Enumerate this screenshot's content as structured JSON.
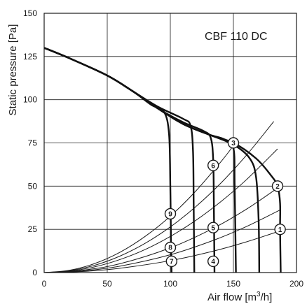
{
  "chart_data": {
    "type": "line",
    "title": "",
    "annotation": "CBF 110 DC",
    "xlabel": "Air flow [m",
    "xlabel_sup": "3",
    "xlabel_tail": "/h]",
    "ylabel": "Static pressure [Pa]",
    "xlim": [
      0,
      200
    ],
    "ylim": [
      0,
      150
    ],
    "xticks": [
      0,
      50,
      100,
      150,
      200
    ],
    "yticks": [
      0,
      25,
      50,
      75,
      100,
      125,
      150
    ],
    "xtick_labels": [
      "0",
      "50",
      "100",
      "150",
      "200"
    ],
    "ytick_labels": [
      "0",
      "25",
      "50",
      "75",
      "100",
      "125",
      "150"
    ],
    "grid": true,
    "fan_curves": [
      {
        "points": [
          [
            0,
            130
          ],
          [
            20,
            124
          ],
          [
            50,
            114
          ],
          [
            70,
            105
          ],
          [
            85,
            97
          ],
          [
            95,
            93
          ],
          [
            99,
            80
          ],
          [
            100,
            50
          ],
          [
            100.5,
            20
          ],
          [
            101,
            0
          ]
        ]
      },
      {
        "points": [
          [
            0,
            130
          ],
          [
            20,
            124
          ],
          [
            50,
            114
          ],
          [
            70,
            105
          ],
          [
            90,
            96
          ],
          [
            110,
            89
          ],
          [
            116,
            85
          ],
          [
            118,
            70
          ],
          [
            118.5,
            40
          ],
          [
            119,
            0
          ]
        ]
      },
      {
        "points": [
          [
            0,
            130
          ],
          [
            20,
            124
          ],
          [
            50,
            114
          ],
          [
            70,
            105
          ],
          [
            90,
            95
          ],
          [
            110,
            87
          ],
          [
            126,
            82
          ],
          [
            132,
            78
          ],
          [
            134,
            65
          ],
          [
            134.5,
            40
          ],
          [
            135,
            0
          ]
        ]
      },
      {
        "points": [
          [
            0,
            130
          ],
          [
            20,
            124
          ],
          [
            50,
            114
          ],
          [
            70,
            105
          ],
          [
            90,
            95
          ],
          [
            110,
            86
          ],
          [
            130,
            80
          ],
          [
            143,
            77
          ],
          [
            150,
            72
          ],
          [
            151,
            50
          ],
          [
            152,
            0
          ]
        ]
      },
      {
        "points": [
          [
            0,
            130
          ],
          [
            20,
            124
          ],
          [
            50,
            114
          ],
          [
            70,
            105
          ],
          [
            90,
            95
          ],
          [
            110,
            86
          ],
          [
            130,
            80
          ],
          [
            150,
            74
          ],
          [
            163,
            66
          ],
          [
            168,
            55
          ],
          [
            170,
            30
          ],
          [
            170.5,
            0
          ]
        ]
      },
      {
        "points": [
          [
            0,
            130
          ],
          [
            20,
            124
          ],
          [
            50,
            114
          ],
          [
            70,
            105
          ],
          [
            90,
            95
          ],
          [
            110,
            86
          ],
          [
            130,
            80
          ],
          [
            150,
            75
          ],
          [
            168,
            66
          ],
          [
            180,
            56
          ],
          [
            185,
            50
          ],
          [
            187,
            40
          ],
          [
            187,
            25
          ],
          [
            187.5,
            0
          ]
        ]
      }
    ],
    "system_curves": [
      {
        "points": [
          [
            0,
            0
          ],
          [
            20,
            1.3
          ],
          [
            40,
            5.2
          ],
          [
            60,
            11.7
          ],
          [
            80,
            20.9
          ],
          [
            100,
            32.6
          ],
          [
            120,
            47
          ],
          [
            140,
            64
          ],
          [
            150,
            73.4
          ]
        ]
      },
      {
        "points": [
          [
            0,
            0
          ],
          [
            20,
            1.05
          ],
          [
            40,
            4.2
          ],
          [
            60,
            9.5
          ],
          [
            80,
            16.9
          ],
          [
            100,
            26.4
          ],
          [
            120,
            38
          ],
          [
            140,
            51.7
          ],
          [
            160,
            67.6
          ],
          [
            182,
            87.4
          ]
        ]
      },
      {
        "points": [
          [
            0,
            0
          ],
          [
            20,
            0.8
          ],
          [
            40,
            3.3
          ],
          [
            60,
            7.5
          ],
          [
            80,
            13.3
          ],
          [
            100,
            20.9
          ],
          [
            120,
            30.1
          ],
          [
            140,
            41
          ],
          [
            160,
            53.5
          ],
          [
            185,
            71.5
          ]
        ]
      },
      {
        "points": [
          [
            0,
            0
          ],
          [
            30,
            1.3
          ],
          [
            60,
            5.1
          ],
          [
            100,
            14.3
          ],
          [
            134,
            25.6
          ],
          [
            160,
            36.5
          ],
          [
            187,
            49.9
          ]
        ]
      },
      {
        "points": [
          [
            0,
            0
          ],
          [
            30,
            0.9
          ],
          [
            60,
            3.7
          ],
          [
            100,
            10.3
          ],
          [
            134,
            18.6
          ],
          [
            160,
            26.5
          ],
          [
            187,
            36.2
          ]
        ]
      },
      {
        "points": [
          [
            0,
            0
          ],
          [
            30,
            0.6
          ],
          [
            60,
            2.5
          ],
          [
            100,
            6.9
          ],
          [
            134,
            12.4
          ],
          [
            160,
            17.7
          ],
          [
            187,
            24.1
          ]
        ]
      }
    ],
    "markers": [
      {
        "label": "1",
        "x": 187,
        "y": 25
      },
      {
        "label": "2",
        "x": 185,
        "y": 50
      },
      {
        "label": "3",
        "x": 150,
        "y": 75
      },
      {
        "label": "4",
        "x": 134,
        "y": 6.5
      },
      {
        "label": "5",
        "x": 134,
        "y": 26
      },
      {
        "label": "6",
        "x": 134,
        "y": 62
      },
      {
        "label": "7",
        "x": 101,
        "y": 6.5
      },
      {
        "label": "8",
        "x": 100,
        "y": 14.5
      },
      {
        "label": "9",
        "x": 100,
        "y": 34
      }
    ]
  }
}
